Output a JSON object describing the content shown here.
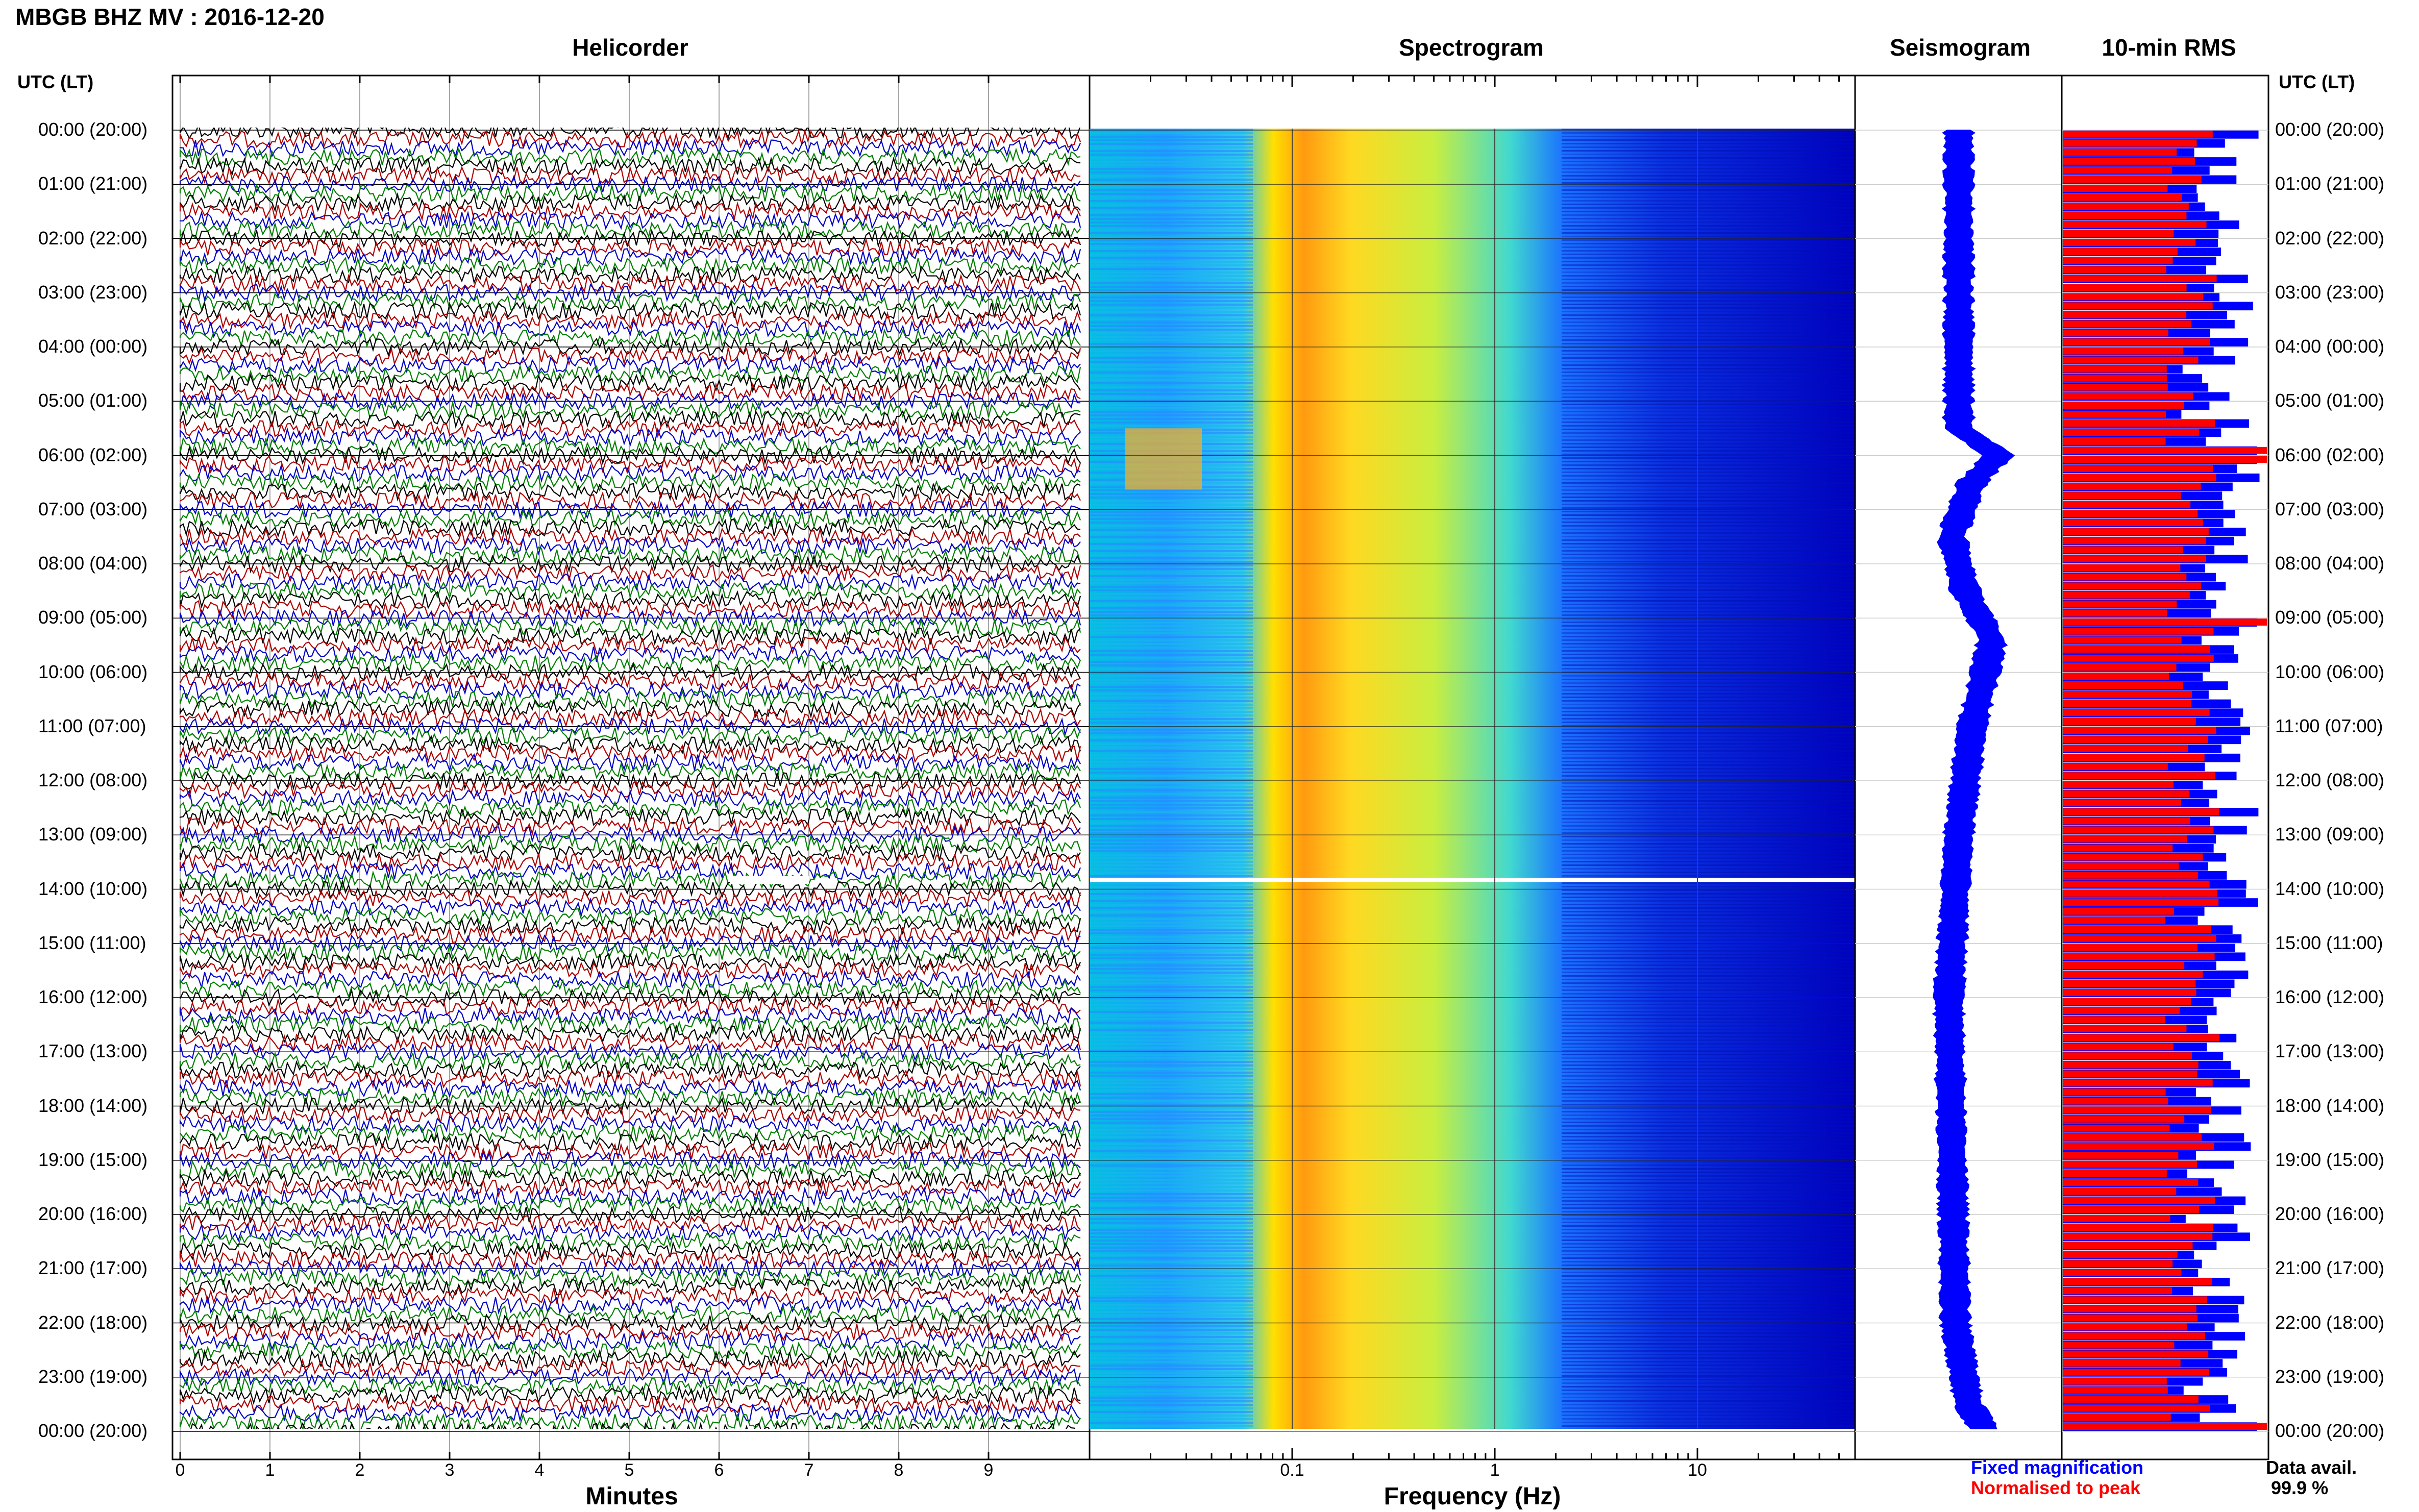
{
  "title": "MBGB BHZ MV : 2016-12-20",
  "panels": {
    "helicorder": "Helicorder",
    "spectrogram": "Spectrogram",
    "seismogram": "Seismogram",
    "rms": "10-min RMS"
  },
  "time_axis_header": "UTC (LT)",
  "time_labels": [
    "00:00 (20:00)",
    "01:00 (21:00)",
    "02:00 (22:00)",
    "03:00 (23:00)",
    "04:00 (00:00)",
    "05:00 (01:00)",
    "06:00 (02:00)",
    "07:00 (03:00)",
    "08:00 (04:00)",
    "09:00 (05:00)",
    "10:00 (06:00)",
    "11:00 (07:00)",
    "12:00 (08:00)",
    "13:00 (09:00)",
    "14:00 (10:00)",
    "15:00 (11:00)",
    "16:00 (12:00)",
    "17:00 (13:00)",
    "18:00 (14:00)",
    "19:00 (15:00)",
    "20:00 (16:00)",
    "21:00 (17:00)",
    "22:00 (18:00)",
    "23:00 (19:00)",
    "00:00 (20:00)"
  ],
  "helicorder_axis": {
    "xlabel": "Minutes",
    "ticks": [
      "0",
      "1",
      "2",
      "3",
      "4",
      "5",
      "6",
      "7",
      "8",
      "9"
    ],
    "trace_colors": [
      "#000000",
      "#b00000",
      "#0000c8",
      "#008000"
    ]
  },
  "spectrogram_axis": {
    "xlabel": "Frequency (Hz)",
    "scale": "log",
    "ticks": [
      "0.1",
      "1",
      "10"
    ],
    "xlim": [
      0.01,
      60
    ]
  },
  "legend": {
    "fixed": "Fixed magnification",
    "fixed_color": "#0000ff",
    "normalised": "Normalised to peak",
    "normalised_color": "#ff0000"
  },
  "data_availability": {
    "label": "Data avail.",
    "value": "99.9 %"
  },
  "chart_data": {
    "type": "heatmap",
    "title": "MBGB BHZ MV : 2016-12-20",
    "y_time_range_utc": [
      "00:00",
      "24:00"
    ],
    "data_gap_utc": "13:50",
    "seismogram_envelope_offsets": [
      {
        "t": 0,
        "v": 0.0
      },
      {
        "t": 3,
        "v": 0.0
      },
      {
        "t": 5.5,
        "v": 0.0
      },
      {
        "t": 6.0,
        "v": 0.6
      },
      {
        "t": 6.5,
        "v": 0.2
      },
      {
        "t": 7.5,
        "v": -0.1
      },
      {
        "t": 8.5,
        "v": 0.1
      },
      {
        "t": 9.4,
        "v": 0.5
      },
      {
        "t": 10,
        "v": 0.4
      },
      {
        "t": 11,
        "v": 0.2
      },
      {
        "t": 13,
        "v": 0.0
      },
      {
        "t": 16,
        "v": -0.15
      },
      {
        "t": 19,
        "v": -0.1
      },
      {
        "t": 22,
        "v": -0.05
      },
      {
        "t": 23.5,
        "v": 0.15
      },
      {
        "t": 24,
        "v": 0.4
      }
    ]
  }
}
